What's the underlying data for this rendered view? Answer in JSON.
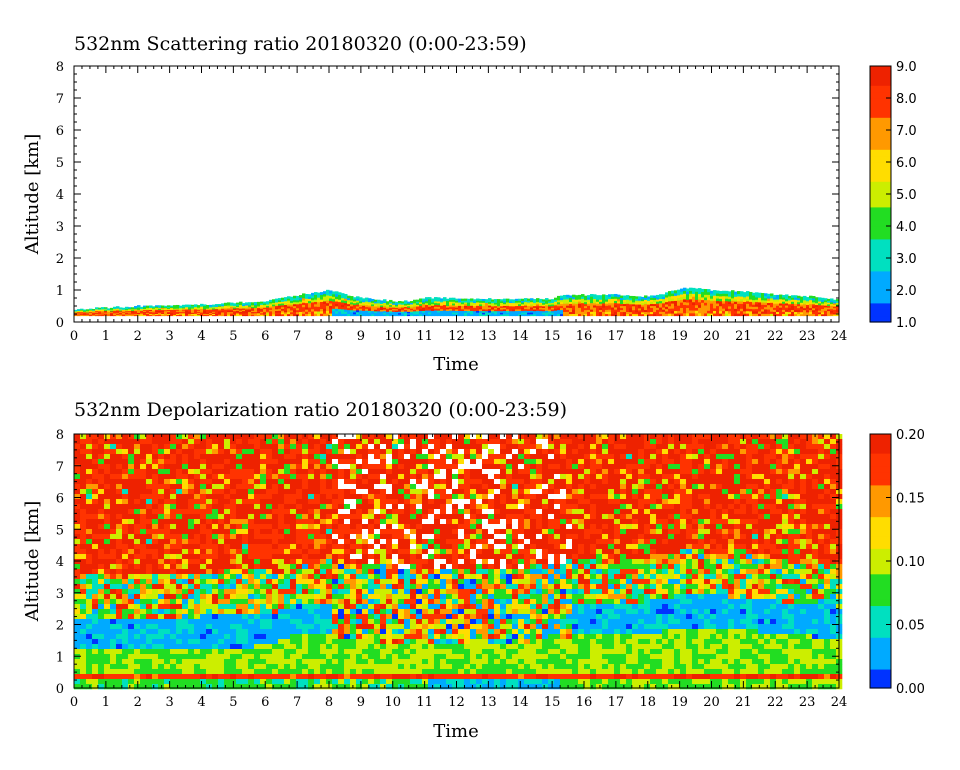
{
  "chart_data": [
    {
      "type": "heatmap",
      "title": "532nm Scattering ratio  20180320 (0:00-23:59)",
      "xlabel": "Time",
      "ylabel": "Altitude [km]",
      "xlim": [
        0,
        24
      ],
      "ylim": [
        0,
        8
      ],
      "x_ticks": [
        "0",
        "1",
        "2",
        "3",
        "4",
        "5",
        "6",
        "7",
        "8",
        "9",
        "10",
        "11",
        "12",
        "13",
        "14",
        "15",
        "16",
        "17",
        "18",
        "19",
        "20",
        "21",
        "22",
        "23",
        "24"
      ],
      "y_ticks": [
        "0",
        "1",
        "2",
        "3",
        "4",
        "5",
        "6",
        "7",
        "8"
      ],
      "colorbar": {
        "range": [
          1.0,
          9.0
        ],
        "ticks": [
          "9.0",
          "8.0",
          "7.0",
          "6.0",
          "5.0",
          "4.0",
          "3.0",
          "2.0",
          "1.0"
        ],
        "colormap": [
          "#0033ff",
          "#00aaff",
          "#00e0c0",
          "#22dd22",
          "#ccee00",
          "#ffdd00",
          "#ff9900",
          "#ff3300",
          "#ee2200"
        ]
      },
      "layer_top_km": {
        "time_h": [
          0,
          1,
          2,
          3,
          4,
          5,
          6,
          6.5,
          7,
          7.5,
          8,
          8.5,
          9,
          9.5,
          10,
          10.5,
          11,
          12,
          13,
          14,
          15,
          15.2,
          16,
          17,
          18,
          18.5,
          19,
          19.5,
          20,
          21,
          22,
          23,
          24
        ],
        "values": [
          0.4,
          0.45,
          0.5,
          0.5,
          0.55,
          0.6,
          0.65,
          0.75,
          0.85,
          0.9,
          1.0,
          0.85,
          0.75,
          0.7,
          0.65,
          0.65,
          0.75,
          0.75,
          0.72,
          0.72,
          0.72,
          0.85,
          0.85,
          0.85,
          0.8,
          0.9,
          1.05,
          1.05,
          1.0,
          0.95,
          0.85,
          0.8,
          0.7
        ]
      }
    },
    {
      "type": "heatmap",
      "title": "532nm Depolarization ratio  20180320 (0:00-23:59)",
      "xlabel": "Time",
      "ylabel": "Altitude [km]",
      "xlim": [
        0,
        24
      ],
      "ylim": [
        0,
        8
      ],
      "x_ticks": [
        "0",
        "1",
        "2",
        "3",
        "4",
        "5",
        "6",
        "7",
        "8",
        "9",
        "10",
        "11",
        "12",
        "13",
        "14",
        "15",
        "16",
        "17",
        "18",
        "19",
        "20",
        "21",
        "22",
        "23",
        "24"
      ],
      "y_ticks": [
        "0",
        "1",
        "2",
        "3",
        "4",
        "5",
        "6",
        "7",
        "8"
      ],
      "colorbar": {
        "range": [
          0.0,
          0.2
        ],
        "ticks": [
          "0.20",
          "0.15",
          "0.10",
          "0.05",
          "0.00"
        ],
        "colormap": [
          "#0033ff",
          "#00aaff",
          "#00e0c0",
          "#22dd22",
          "#ccee00",
          "#ffdd00",
          "#ff9900",
          "#ff3300",
          "#ee2200"
        ]
      },
      "low_depol_band_top_km": {
        "time_h": [
          0,
          3,
          6,
          7,
          8,
          9,
          10,
          11,
          12,
          13,
          14,
          15,
          16,
          17,
          18,
          19,
          20,
          21,
          22,
          23,
          24
        ],
        "values": [
          1.3,
          1.3,
          1.4,
          1.8,
          1.7,
          1.6,
          1.5,
          1.45,
          1.4,
          1.45,
          1.5,
          1.6,
          1.8,
          1.8,
          1.8,
          2.0,
          2.0,
          1.9,
          1.8,
          1.7,
          1.6
        ]
      }
    }
  ]
}
